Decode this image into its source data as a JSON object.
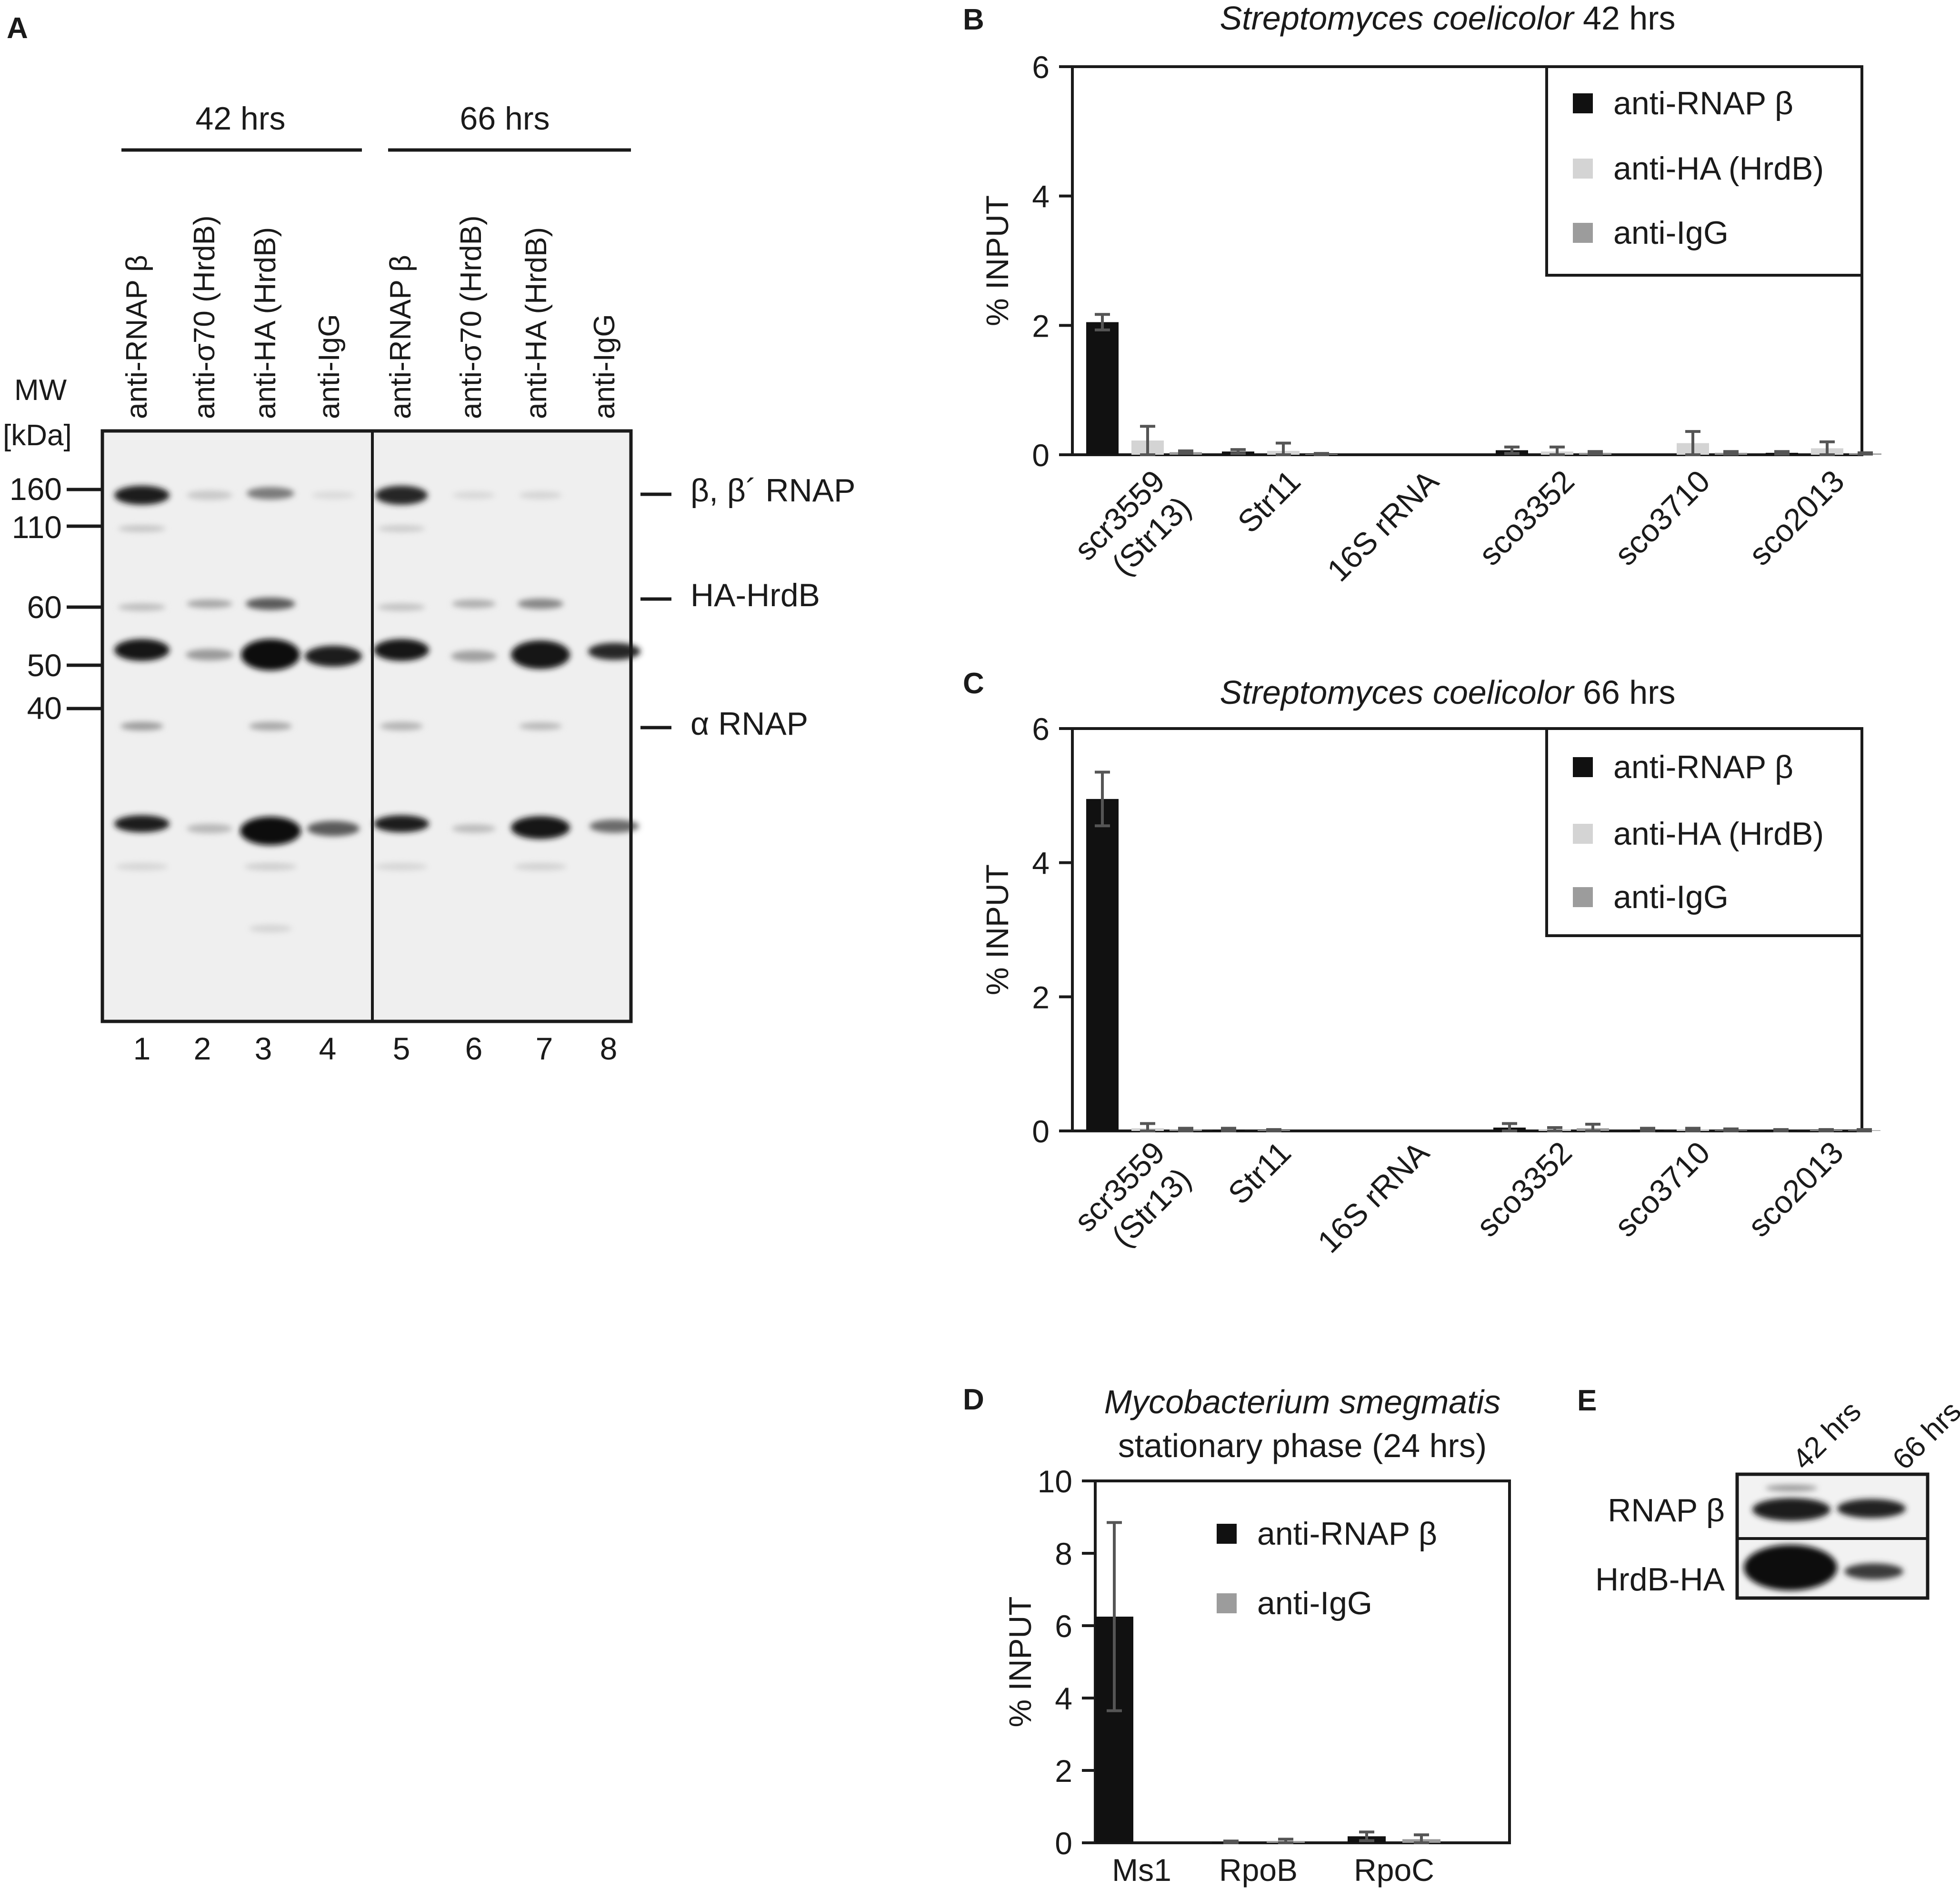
{
  "panel_labels": {
    "a": "A",
    "b": "B",
    "c": "C",
    "d": "D",
    "e": "E"
  },
  "gel": {
    "timepoints": [
      "42 hrs",
      "66 hrs"
    ],
    "lanes": [
      {
        "label": "anti-RNAP β",
        "number": "1"
      },
      {
        "label": "anti-σ70 (HrdB)",
        "number": "2"
      },
      {
        "label": "anti-HA (HrdB)",
        "number": "3"
      },
      {
        "label": "anti-IgG",
        "number": "4"
      },
      {
        "label": "anti-RNAP β",
        "number": "5"
      },
      {
        "label": "anti-σ70 (HrdB)",
        "number": "6"
      },
      {
        "label": "anti-HA (HrdB)",
        "number": "7"
      },
      {
        "label": "anti-IgG",
        "number": "8"
      }
    ],
    "mw_title": [
      "MW",
      "[kDa]"
    ],
    "markers": [
      {
        "label": "160",
        "kda": 160
      },
      {
        "label": "110",
        "kda": 110
      },
      {
        "label": "60",
        "kda": 60
      },
      {
        "label": "50",
        "kda": 50
      },
      {
        "label": "40",
        "kda": 40
      }
    ],
    "band_labels": [
      "β, β´ RNAP",
      "HA-HrdB",
      "α RNAP"
    ]
  },
  "chart_data": [
    {
      "panel": "B",
      "type": "bar",
      "title_italic": "Streptomyces coelicolor",
      "title_rest": " 42 hrs",
      "ylabel": "% INPUT",
      "ylim": [
        0,
        6
      ],
      "yticks": [
        0,
        2,
        4,
        6
      ],
      "categories": [
        "scr3559 (Str13)",
        "Str11",
        "16S rRNA",
        "sco3352",
        "sco3710",
        "sco2013"
      ],
      "series": [
        {
          "name": "anti-RNAP β",
          "color": "#111111",
          "values": [
            2.05,
            0.05,
            0.0,
            0.07,
            0.0,
            0.03
          ],
          "errors": [
            0.12,
            0.03,
            0.0,
            0.05,
            0.0,
            0.02
          ]
        },
        {
          "name": "anti-HA (HrdB)",
          "color": "#d4d4d4",
          "values": [
            0.22,
            0.06,
            0.0,
            0.05,
            0.18,
            0.1
          ],
          "errors": [
            0.22,
            0.12,
            0.0,
            0.07,
            0.18,
            0.1
          ]
        },
        {
          "name": "anti-IgG",
          "color": "#9c9c9c",
          "values": [
            0.04,
            0.01,
            0.0,
            0.03,
            0.03,
            0.02
          ],
          "errors": [
            0.02,
            0.01,
            0.0,
            0.02,
            0.02,
            0.01
          ]
        }
      ],
      "legend_position": "top-right"
    },
    {
      "panel": "C",
      "type": "bar",
      "title_italic": "Streptomyces coelicolor",
      "title_rest": " 66 hrs",
      "ylabel": "% INPUT",
      "ylim": [
        0,
        6
      ],
      "yticks": [
        0,
        2,
        4,
        6
      ],
      "categories": [
        "scr3559 (Str13)",
        "Str11",
        "16S rRNA",
        "sco3352",
        "sco3710",
        "sco2013"
      ],
      "series": [
        {
          "name": "anti-RNAP β",
          "color": "#111111",
          "values": [
            4.95,
            0.02,
            0.0,
            0.05,
            0.02,
            0.01
          ],
          "errors": [
            0.4,
            0.02,
            0.0,
            0.06,
            0.02,
            0.01
          ]
        },
        {
          "name": "anti-HA (HrdB)",
          "color": "#d4d4d4",
          "values": [
            0.04,
            0.01,
            0.0,
            0.02,
            0.02,
            0.01
          ],
          "errors": [
            0.07,
            0.01,
            0.0,
            0.03,
            0.02,
            0.01
          ]
        },
        {
          "name": "anti-IgG",
          "color": "#9c9c9c",
          "values": [
            0.02,
            0.0,
            0.0,
            0.04,
            0.01,
            0.01
          ],
          "errors": [
            0.02,
            0.0,
            0.0,
            0.06,
            0.02,
            0.01
          ]
        }
      ],
      "legend_position": "top-right"
    },
    {
      "panel": "D",
      "type": "bar",
      "title_italic": "Mycobacterium smegmatis",
      "title_rest": "stationary phase (24 hrs)",
      "ylabel": "% INPUT",
      "ylim": [
        0,
        10
      ],
      "yticks": [
        0,
        2,
        4,
        6,
        8,
        10
      ],
      "categories": [
        "Ms1",
        "RpoB",
        "RpoC"
      ],
      "series": [
        {
          "name": "anti-RNAP β",
          "color": "#111111",
          "values": [
            6.25,
            0.02,
            0.18
          ],
          "errors": [
            2.6,
            0.03,
            0.12
          ]
        },
        {
          "name": "anti-IgG",
          "color": "#9c9c9c",
          "values": [
            0.0,
            0.05,
            0.1
          ],
          "errors": [
            0.0,
            0.05,
            0.12
          ]
        }
      ],
      "legend_position": "top-right"
    }
  ],
  "western": {
    "timepoints": [
      "42 hrs",
      "66 hrs"
    ],
    "rows": [
      "RNAP β",
      "HrdB-HA"
    ]
  }
}
